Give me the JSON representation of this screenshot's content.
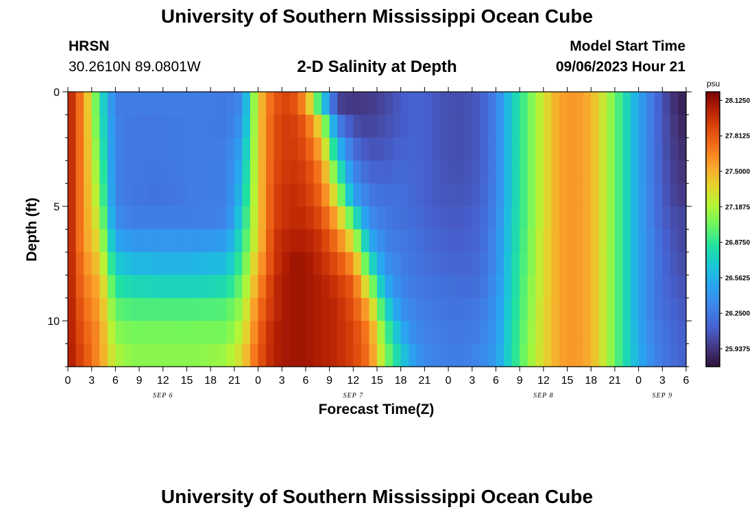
{
  "header": {
    "title": "University of Southern Mississippi Ocean Cube",
    "station": "HRSN",
    "location": "30.2610N  89.0801W",
    "plot_title": "2-D Salinity at Depth",
    "model_start_label": "Model Start Time",
    "model_start_value": "09/06/2023 Hour 21"
  },
  "footer": {
    "title": "University of Southern Mississippi Ocean Cube"
  },
  "chart_data": {
    "type": "heatmap",
    "title": "2-D Salinity at Depth",
    "xlabel": "Forecast Time(Z)",
    "ylabel": "Depth (ft)",
    "ylim": [
      0,
      12
    ],
    "y_ticks": [
      0,
      5,
      10
    ],
    "x_tick_labels": [
      "0",
      "3",
      "6",
      "9",
      "12",
      "15",
      "18",
      "21",
      "0",
      "3",
      "6",
      "9",
      "12",
      "15",
      "18",
      "21",
      "0",
      "3",
      "6",
      "9",
      "12",
      "15",
      "18",
      "21",
      "0",
      "3",
      "6"
    ],
    "date_labels": [
      {
        "label": "SEP 6",
        "hour_index": 4
      },
      {
        "label": "SEP 7",
        "hour_index": 12
      },
      {
        "label": "SEP 8",
        "hour_index": 20
      },
      {
        "label": "SEP 9",
        "hour_index": 25
      }
    ],
    "forecast_hours": 78,
    "colorbar": {
      "unit": "psu",
      "min": 25.78,
      "max": 28.2,
      "tick_labels": [
        "28.1250",
        "27.8125",
        "27.5000",
        "27.1875",
        "26.8750",
        "26.5625",
        "26.2500",
        "25.9375"
      ],
      "tick_values": [
        28.125,
        27.8125,
        27.5,
        27.1875,
        26.875,
        26.5625,
        26.25,
        25.9375
      ]
    },
    "depth_profile_keypoints_ft": [
      0,
      1.5,
      3,
      4.5,
      5.5,
      6.5,
      7.5,
      8.5,
      9.5,
      10.5,
      11.5,
      12
    ],
    "salinity_keyframes": [
      {
        "hour": 0,
        "values": [
          28.1,
          28.1,
          28.1,
          28.1,
          28.1,
          28.1,
          28.1,
          28.1,
          28.1,
          28.1,
          28.1,
          28.1
        ]
      },
      {
        "hour": 2,
        "values": [
          27.6,
          27.6,
          27.6,
          27.6,
          27.6,
          27.6,
          27.65,
          27.7,
          27.75,
          27.8,
          27.85,
          27.9
        ]
      },
      {
        "hour": 4,
        "values": [
          26.85,
          26.9,
          27.0,
          27.1,
          27.2,
          27.3,
          27.4,
          27.5,
          27.55,
          27.6,
          27.6,
          27.65
        ]
      },
      {
        "hour": 6,
        "values": [
          26.25,
          26.3,
          26.3,
          26.3,
          26.35,
          26.5,
          26.7,
          26.85,
          27.0,
          27.1,
          27.2,
          27.35
        ]
      },
      {
        "hour": 8,
        "values": [
          26.28,
          26.25,
          26.25,
          26.25,
          26.28,
          26.42,
          26.6,
          26.78,
          26.95,
          27.05,
          27.1,
          27.3
        ]
      },
      {
        "hour": 12,
        "values": [
          26.28,
          26.25,
          26.25,
          26.22,
          26.28,
          26.42,
          26.58,
          26.75,
          26.95,
          27.05,
          27.1,
          27.3
        ]
      },
      {
        "hour": 16,
        "values": [
          26.28,
          26.27,
          26.27,
          26.27,
          26.28,
          26.42,
          26.58,
          26.75,
          26.95,
          27.05,
          27.1,
          27.3
        ]
      },
      {
        "hour": 20,
        "values": [
          26.25,
          26.25,
          26.28,
          26.28,
          26.3,
          26.45,
          26.62,
          26.8,
          26.97,
          27.05,
          27.15,
          27.35
        ]
      },
      {
        "hour": 22,
        "values": [
          26.3,
          26.4,
          26.55,
          26.65,
          26.75,
          26.85,
          26.95,
          27.05,
          27.15,
          27.25,
          27.35,
          27.5
        ]
      },
      {
        "hour": 24,
        "values": [
          27.4,
          27.4,
          27.4,
          27.4,
          27.4,
          27.4,
          27.5,
          27.6,
          27.7,
          27.75,
          27.8,
          27.85
        ]
      },
      {
        "hour": 26,
        "values": [
          27.8,
          27.85,
          27.85,
          27.9,
          27.9,
          27.95,
          27.95,
          28.0,
          28.0,
          28.05,
          28.05,
          28.05
        ]
      },
      {
        "hour": 28,
        "values": [
          27.9,
          27.95,
          27.95,
          28.0,
          28.0,
          28.05,
          28.1,
          28.1,
          28.1,
          28.1,
          28.1,
          28.1
        ]
      },
      {
        "hour": 30,
        "values": [
          27.5,
          27.8,
          27.9,
          27.95,
          28.0,
          28.05,
          28.1,
          28.1,
          28.1,
          28.1,
          28.1,
          28.1
        ]
      },
      {
        "hour": 32,
        "values": [
          26.5,
          27.3,
          27.6,
          27.75,
          27.85,
          27.95,
          28.0,
          28.05,
          28.05,
          28.05,
          28.05,
          28.05
        ]
      },
      {
        "hour": 34,
        "values": [
          25.85,
          26.3,
          26.8,
          27.2,
          27.5,
          27.7,
          27.85,
          27.95,
          28.0,
          28.0,
          28.0,
          28.0
        ]
      },
      {
        "hour": 36,
        "values": [
          25.9,
          26.05,
          26.25,
          26.5,
          26.9,
          27.3,
          27.6,
          27.8,
          27.85,
          27.9,
          27.9,
          27.95
        ]
      },
      {
        "hour": 38,
        "values": [
          25.95,
          26.0,
          26.1,
          26.25,
          26.35,
          26.55,
          26.85,
          27.2,
          27.5,
          27.65,
          27.7,
          27.75
        ]
      },
      {
        "hour": 40,
        "values": [
          26.0,
          26.05,
          26.1,
          26.2,
          26.25,
          26.3,
          26.4,
          26.55,
          26.8,
          27.0,
          27.1,
          27.15
        ]
      },
      {
        "hour": 42,
        "values": [
          26.1,
          26.1,
          26.15,
          26.2,
          26.2,
          26.25,
          26.28,
          26.32,
          26.4,
          26.55,
          26.7,
          26.75
        ]
      },
      {
        "hour": 44,
        "values": [
          26.15,
          26.15,
          26.15,
          26.15,
          26.18,
          26.2,
          26.22,
          26.25,
          26.28,
          26.32,
          26.4,
          26.45
        ]
      },
      {
        "hour": 46,
        "values": [
          26.1,
          26.1,
          26.1,
          26.1,
          26.12,
          26.15,
          26.18,
          26.22,
          26.25,
          26.28,
          26.3,
          26.3
        ]
      },
      {
        "hour": 48,
        "values": [
          26.05,
          26.05,
          26.05,
          26.08,
          26.1,
          26.12,
          26.15,
          26.2,
          26.22,
          26.25,
          26.28,
          26.3
        ]
      },
      {
        "hour": 50,
        "values": [
          26.05,
          26.05,
          26.05,
          26.08,
          26.1,
          26.12,
          26.15,
          26.18,
          26.22,
          26.25,
          26.28,
          26.3
        ]
      },
      {
        "hour": 52,
        "values": [
          26.1,
          26.1,
          26.1,
          26.12,
          26.15,
          26.15,
          26.18,
          26.2,
          26.25,
          26.28,
          26.32,
          26.35
        ]
      },
      {
        "hour": 54,
        "values": [
          26.3,
          26.3,
          26.3,
          26.3,
          26.32,
          26.35,
          26.35,
          26.38,
          26.4,
          26.42,
          26.45,
          26.5
        ]
      },
      {
        "hour": 56,
        "values": [
          26.7,
          26.7,
          26.7,
          26.7,
          26.72,
          26.72,
          26.75,
          26.75,
          26.78,
          26.8,
          26.8,
          26.85
        ]
      },
      {
        "hour": 58,
        "values": [
          27.0,
          27.0,
          27.0,
          27.0,
          27.0,
          27.02,
          27.02,
          27.05,
          27.05,
          27.08,
          27.1,
          27.1
        ]
      },
      {
        "hour": 60,
        "values": [
          27.3,
          27.3,
          27.3,
          27.3,
          27.3,
          27.32,
          27.32,
          27.32,
          27.35,
          27.35,
          27.35,
          27.35
        ]
      },
      {
        "hour": 62,
        "values": [
          27.55,
          27.55,
          27.55,
          27.55,
          27.55,
          27.55,
          27.55,
          27.55,
          27.55,
          27.55,
          27.55,
          27.55
        ]
      },
      {
        "hour": 64,
        "values": [
          27.6,
          27.6,
          27.6,
          27.6,
          27.6,
          27.6,
          27.6,
          27.6,
          27.6,
          27.6,
          27.6,
          27.6
        ]
      },
      {
        "hour": 66,
        "values": [
          27.5,
          27.5,
          27.5,
          27.5,
          27.5,
          27.5,
          27.5,
          27.5,
          27.5,
          27.5,
          27.5,
          27.5
        ]
      },
      {
        "hour": 68,
        "values": [
          27.2,
          27.2,
          27.2,
          27.2,
          27.2,
          27.2,
          27.2,
          27.2,
          27.2,
          27.2,
          27.2,
          27.2
        ]
      },
      {
        "hour": 70,
        "values": [
          26.85,
          26.85,
          26.85,
          26.85,
          26.85,
          26.85,
          26.85,
          26.85,
          26.85,
          26.85,
          26.85,
          26.85
        ]
      },
      {
        "hour": 72,
        "values": [
          26.5,
          26.5,
          26.5,
          26.5,
          26.5,
          26.5,
          26.5,
          26.5,
          26.5,
          26.52,
          26.55,
          26.6
        ]
      },
      {
        "hour": 74,
        "values": [
          26.2,
          26.2,
          26.2,
          26.22,
          26.22,
          26.25,
          26.25,
          26.25,
          26.25,
          26.28,
          26.3,
          26.3
        ]
      },
      {
        "hour": 76,
        "values": [
          25.95,
          25.98,
          26.0,
          26.02,
          26.05,
          26.08,
          26.1,
          26.12,
          26.15,
          26.18,
          26.2,
          26.2
        ]
      },
      {
        "hour": 78,
        "values": [
          25.8,
          25.85,
          25.9,
          25.95,
          26.0,
          26.0,
          26.02,
          26.05,
          26.08,
          26.1,
          26.12,
          26.15
        ]
      }
    ]
  }
}
